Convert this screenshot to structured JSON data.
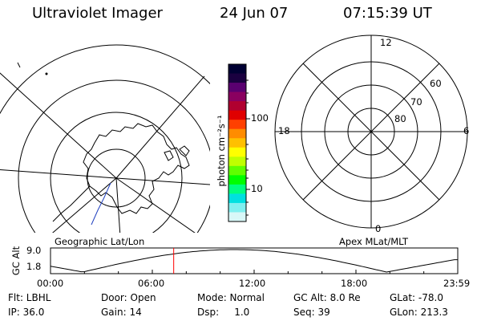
{
  "header": {
    "title": "Ultraviolet Imager",
    "date": "24 Jun 07",
    "time": "07:15:39 UT"
  },
  "maps": {
    "left_label": "Geographic Lat/Lon",
    "right_label": "Apex MLat/MLT"
  },
  "colorbar": {
    "unit_label": "photon cm⁻²s⁻¹",
    "tick_100": "100",
    "tick_10": "10",
    "colors": [
      "#000033",
      "#1a0040",
      "#5a0070",
      "#8a0060",
      "#b00030",
      "#e00000",
      "#ff4000",
      "#ff8c00",
      "#ffc000",
      "#ffff00",
      "#c0ff00",
      "#60ff00",
      "#00ff00",
      "#00ff80",
      "#00e0e0",
      "#80f0f0",
      "#d8f8f8"
    ]
  },
  "polar_plot": {
    "mlt_top": "12",
    "mlt_bottom": "0",
    "mlt_left": "18",
    "mlt_right": "6",
    "lat_60": "60",
    "lat_70": "70",
    "lat_80": "80"
  },
  "altitude_plot": {
    "ylabel": "GC Alt",
    "y_max": "9.0",
    "y_min": "1.8",
    "x_ticks": [
      "00:00",
      "06:00",
      "12:00",
      "18:00",
      "23:59"
    ],
    "marker_time_hours": 7.26
  },
  "status": {
    "flt": "Flt: LBHL",
    "door": "Door: Open",
    "mode": "Mode: Normal",
    "gc_alt": "GC Alt: 8.0 Re",
    "glat": "GLat: -78.0",
    "ip": "IP: 36.0",
    "gain": "Gain: 14",
    "dsp": "Dsp:     1.0",
    "seq": "Seq: 39",
    "glon": "GLon: 213.3"
  }
}
